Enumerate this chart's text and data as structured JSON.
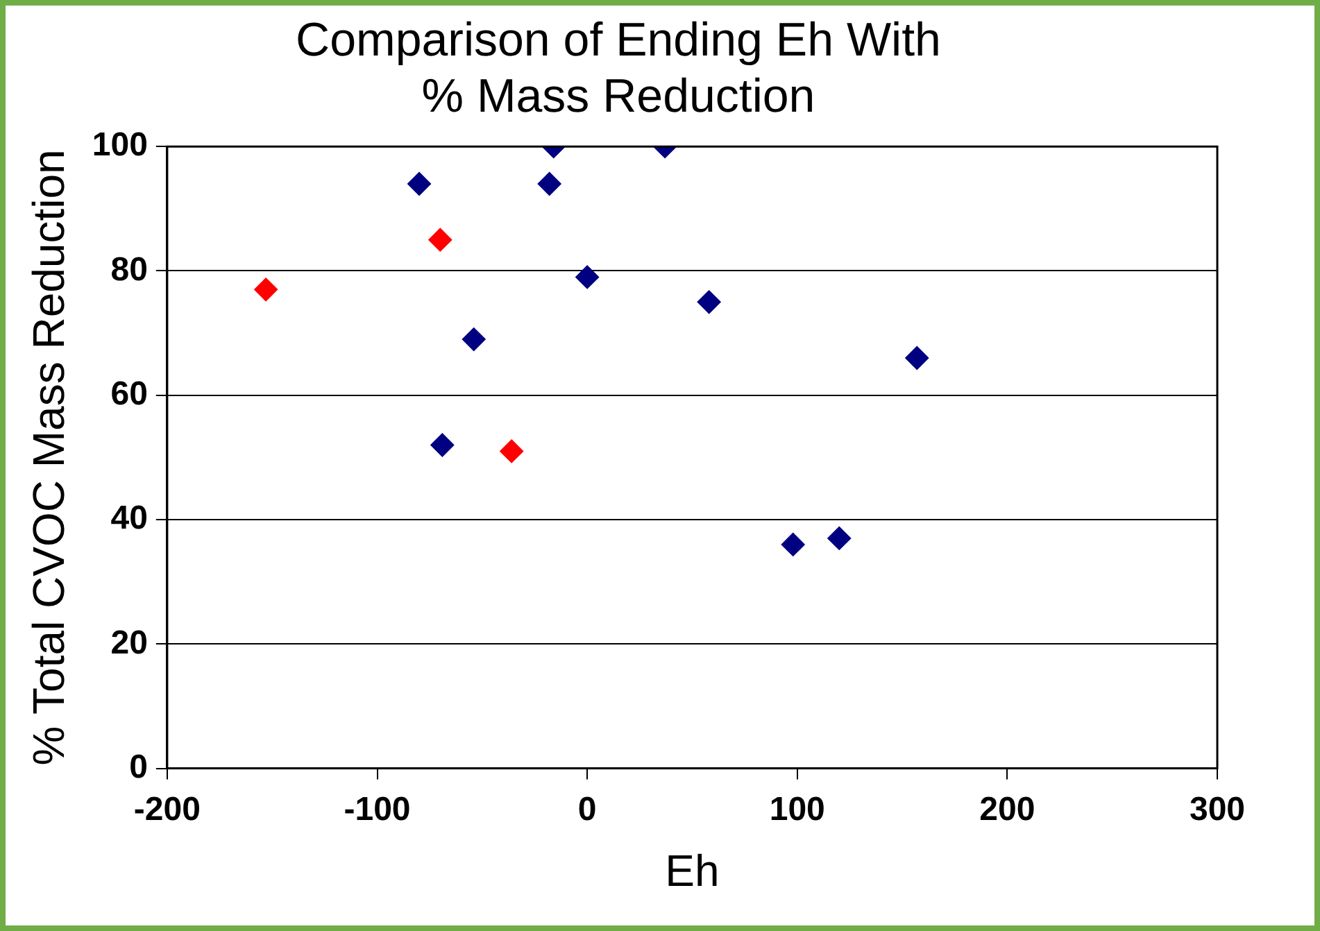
{
  "chart_data": {
    "type": "scatter",
    "title": "Comparison of Ending Eh With\n% Mass Reduction",
    "xlabel": "Eh",
    "ylabel": "% Total CVOC Mass Reduction",
    "series": [
      {
        "color": "#000080",
        "x": [
          -80,
          -16,
          -18,
          37,
          0,
          58,
          -54,
          -69,
          98,
          120,
          157
        ],
        "values": [
          94,
          100,
          94,
          100,
          79,
          75,
          69,
          52,
          36,
          37,
          66
        ]
      },
      {
        "color": "#ff0000",
        "x": [
          -153,
          -70,
          -36
        ],
        "values": [
          77,
          85,
          51
        ]
      }
    ],
    "xlim": [
      -200,
      300
    ],
    "xticks": [
      -200,
      -100,
      0,
      100,
      200,
      300
    ],
    "ylim": [
      0,
      100
    ],
    "yticks": [
      0,
      20,
      40,
      60,
      80,
      100
    ],
    "grid": "y",
    "legend": false,
    "marker": "diamond"
  }
}
